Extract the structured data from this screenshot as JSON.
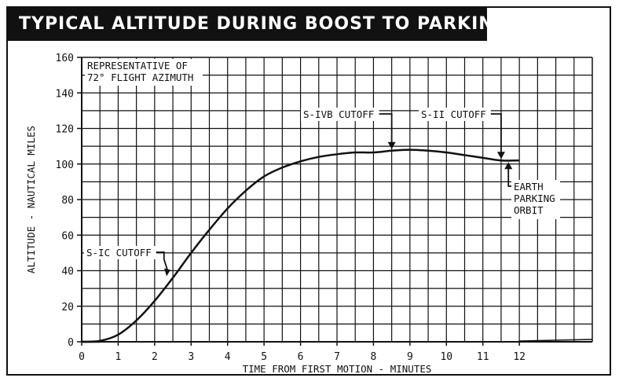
{
  "chart_data": {
    "type": "line",
    "title": "TYPICAL ALTITUDE DURING BOOST TO PARKING ORBIT",
    "xlabel": "TIME FROM FIRST MOTION - MINUTES",
    "ylabel": "ALTITUDE - NAUTICAL MILES",
    "xlim": [
      0,
      14
    ],
    "ylim": [
      0,
      160
    ],
    "x_ticks": [
      "0",
      "1",
      "2",
      "3",
      "4",
      "5",
      "6",
      "7",
      "8",
      "9",
      "10",
      "11",
      "12"
    ],
    "y_ticks": [
      "0",
      "20",
      "40",
      "60",
      "80",
      "100",
      "120",
      "140",
      "160"
    ],
    "grid": true,
    "note": [
      "REPRESENTATIVE OF",
      "72° FLIGHT AZIMUTH"
    ],
    "series": [
      {
        "x": [
          0,
          0.5,
          1,
          1.5,
          2,
          2.5,
          3,
          3.5,
          4,
          4.5,
          5,
          5.5,
          6,
          6.5,
          7,
          7.5,
          8,
          8.5,
          9,
          9.5,
          10,
          10.5,
          11,
          11.5,
          12
        ],
        "values": [
          0,
          0.5,
          4,
          12,
          23,
          36,
          50,
          63,
          75,
          85,
          93,
          98,
          101.5,
          104,
          105.5,
          106.5,
          106.5,
          107.5,
          108,
          107.5,
          106.5,
          105,
          103.5,
          102,
          102
        ]
      }
    ],
    "annotations": [
      {
        "label": "S-IC CUTOFF",
        "x": 2.5,
        "y": 36
      },
      {
        "label": "S-IVB CUTOFF",
        "x": 8.5,
        "y": 107.5
      },
      {
        "label": "S-II CUTOFF",
        "x": 11.5,
        "y": 102
      },
      {
        "label": [
          "EARTH",
          "PARKING",
          "ORBIT"
        ],
        "x": 11.7,
        "y": 102
      }
    ]
  },
  "colors": {
    "ink": "#111111",
    "background": "#ffffff"
  }
}
